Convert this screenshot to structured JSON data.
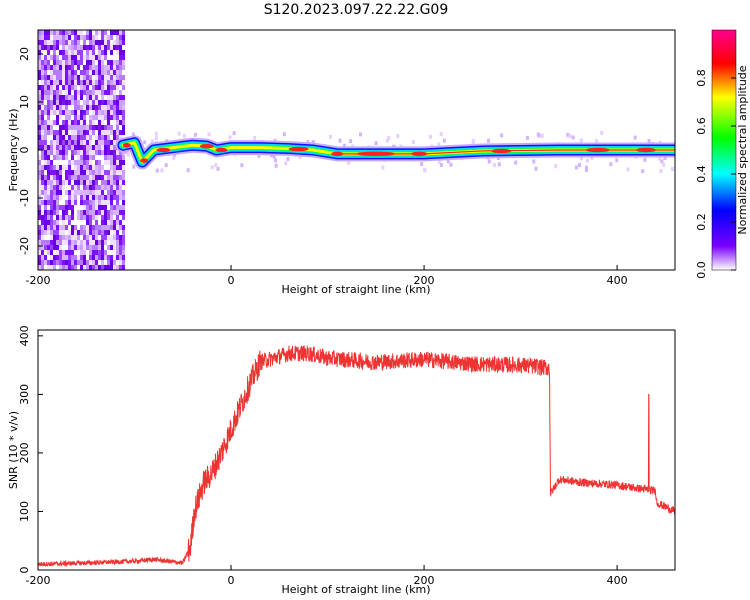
{
  "figure_title": "S120.2023.097.22.22.G09",
  "chart_data": [
    {
      "type": "heatmap",
      "title": "",
      "xlabel": "Height of straight line (km)",
      "ylabel": "Frequency (Hz)",
      "xlim": [
        -200,
        460
      ],
      "ylim": [
        -25,
        25
      ],
      "xticks": [
        -200,
        0,
        200,
        400
      ],
      "yticks": [
        -20,
        -10,
        0,
        10,
        20
      ],
      "grid": false,
      "noise_region_x": [
        -200,
        -112
      ],
      "ridge": [
        {
          "x": -112,
          "y": 1.0
        },
        {
          "x": -100,
          "y": 1.5
        },
        {
          "x": -92,
          "y": -2.5
        },
        {
          "x": -80,
          "y": 0
        },
        {
          "x": -60,
          "y": 0.5
        },
        {
          "x": -40,
          "y": 1.0
        },
        {
          "x": -25,
          "y": 0.8
        },
        {
          "x": -15,
          "y": 0
        },
        {
          "x": 0,
          "y": 0.5
        },
        {
          "x": 30,
          "y": 0.5
        },
        {
          "x": 60,
          "y": 0.3
        },
        {
          "x": 85,
          "y": 0
        },
        {
          "x": 110,
          "y": -0.8
        },
        {
          "x": 200,
          "y": -0.8
        },
        {
          "x": 260,
          "y": -0.2
        },
        {
          "x": 340,
          "y": 0
        },
        {
          "x": 460,
          "y": 0
        }
      ],
      "colorbar": {
        "label": "Normalized spectral amplitude",
        "range": [
          0,
          1
        ],
        "ticks": [
          "0.0",
          "0.2",
          "0.4",
          "0.6",
          "0.8"
        ],
        "colormap": [
          "#ffffff",
          "#7800ff",
          "#0000ff",
          "#00ffff",
          "#00ff00",
          "#ffff00",
          "#ff0000",
          "#ff0090"
        ]
      }
    },
    {
      "type": "line",
      "title": "",
      "xlabel": "Height of straight line (km)",
      "ylabel": "SNR (10 * v/v)",
      "xlim": [
        -200,
        460
      ],
      "ylim": [
        0,
        410
      ],
      "xticks": [
        -200,
        0,
        200,
        400
      ],
      "yticks": [
        0,
        100,
        200,
        300,
        400
      ],
      "grid": false,
      "series": [
        {
          "color": "#ee3333",
          "x": [
            -200,
            -150,
            -100,
            -80,
            -50,
            -42,
            -38,
            -32,
            -28,
            -20,
            -10,
            0,
            10,
            20,
            30,
            40,
            60,
            80,
            100,
            150,
            200,
            250,
            300,
            330,
            331,
            340,
            360,
            400,
            440,
            441,
            460
          ],
          "y": [
            10,
            12,
            15,
            18,
            12,
            40,
            100,
            130,
            150,
            165,
            200,
            240,
            280,
            320,
            355,
            360,
            370,
            370,
            362,
            355,
            360,
            352,
            350,
            345,
            130,
            155,
            150,
            145,
            135,
            115,
            100
          ]
        }
      ],
      "spike": {
        "x": 433,
        "y": 300
      }
    }
  ]
}
